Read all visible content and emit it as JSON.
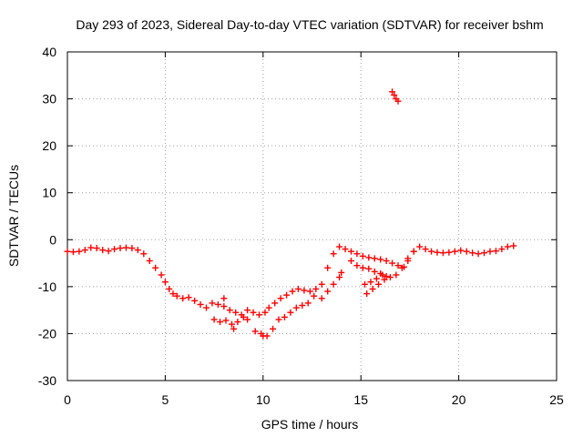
{
  "chart_data": {
    "type": "scatter",
    "title": "Day 293 of 2023, Sidereal Day-to-day VTEC variation (SDTVAR) for receiver bshm",
    "xlabel": "GPS time / hours",
    "ylabel": "SDTVAR / TECUs",
    "xlim": [
      0,
      25
    ],
    "ylim": [
      -30,
      40
    ],
    "xticks": [
      "0",
      "5",
      "10",
      "15",
      "20",
      "25"
    ],
    "yticks": [
      "-30",
      "-20",
      "-10",
      "0",
      "10",
      "20",
      "30",
      "40"
    ],
    "grid": true,
    "marker": "plus",
    "color": "#ff0000",
    "series": [
      {
        "name": "SDTVAR",
        "points": [
          [
            0.0,
            -2.5
          ],
          [
            0.3,
            -2.6
          ],
          [
            0.6,
            -2.5
          ],
          [
            0.9,
            -2.2
          ],
          [
            1.2,
            -1.7
          ],
          [
            1.5,
            -1.8
          ],
          [
            1.8,
            -2.2
          ],
          [
            2.1,
            -2.4
          ],
          [
            2.4,
            -2.0
          ],
          [
            2.7,
            -1.8
          ],
          [
            3.0,
            -1.7
          ],
          [
            3.3,
            -1.8
          ],
          [
            3.6,
            -2.2
          ],
          [
            3.9,
            -3.0
          ],
          [
            4.2,
            -4.5
          ],
          [
            4.5,
            -6.0
          ],
          [
            4.8,
            -7.5
          ],
          [
            5.0,
            -9.0
          ],
          [
            5.2,
            -10.5
          ],
          [
            5.4,
            -11.5
          ],
          [
            5.6,
            -12.0
          ],
          [
            5.9,
            -12.5
          ],
          [
            6.2,
            -12.3
          ],
          [
            6.5,
            -13.0
          ],
          [
            6.8,
            -13.8
          ],
          [
            7.1,
            -14.5
          ],
          [
            7.4,
            -13.5
          ],
          [
            7.7,
            -13.8
          ],
          [
            8.0,
            -14.2
          ],
          [
            8.3,
            -15.0
          ],
          [
            8.6,
            -15.5
          ],
          [
            8.9,
            -16.0
          ],
          [
            9.2,
            -15.0
          ],
          [
            9.5,
            -15.5
          ],
          [
            9.8,
            -16.0
          ],
          [
            10.1,
            -15.5
          ],
          [
            10.3,
            -14.5
          ],
          [
            10.6,
            -13.5
          ],
          [
            10.9,
            -12.5
          ],
          [
            11.2,
            -11.8
          ],
          [
            11.5,
            -11.0
          ],
          [
            11.8,
            -10.5
          ],
          [
            12.1,
            -10.8
          ],
          [
            12.4,
            -11.0
          ],
          [
            12.7,
            -10.5
          ],
          [
            13.0,
            -9.5
          ],
          [
            13.3,
            -6.0
          ],
          [
            13.6,
            -3.0
          ],
          [
            13.9,
            -1.5
          ],
          [
            14.2,
            -2.0
          ],
          [
            14.5,
            -2.5
          ],
          [
            14.8,
            -3.0
          ],
          [
            15.1,
            -3.5
          ],
          [
            15.4,
            -3.8
          ],
          [
            15.7,
            -4.0
          ],
          [
            16.0,
            -4.2
          ],
          [
            16.3,
            -4.5
          ],
          [
            16.6,
            -5.0
          ],
          [
            16.9,
            -5.5
          ],
          [
            17.2,
            -5.8
          ],
          [
            17.4,
            -4.0
          ],
          [
            17.7,
            -2.5
          ],
          [
            18.0,
            -1.5
          ],
          [
            18.3,
            -2.0
          ],
          [
            18.6,
            -2.5
          ],
          [
            18.9,
            -2.7
          ],
          [
            19.2,
            -2.8
          ],
          [
            19.5,
            -2.7
          ],
          [
            19.8,
            -2.5
          ],
          [
            20.1,
            -2.3
          ],
          [
            20.4,
            -2.5
          ],
          [
            20.7,
            -2.8
          ],
          [
            21.0,
            -3.0
          ],
          [
            21.3,
            -2.8
          ],
          [
            21.6,
            -2.5
          ],
          [
            21.9,
            -2.4
          ],
          [
            22.2,
            -2.0
          ],
          [
            22.5,
            -1.5
          ],
          [
            22.8,
            -1.3
          ],
          [
            7.5,
            -17.0
          ],
          [
            7.8,
            -17.5
          ],
          [
            8.1,
            -17.2
          ],
          [
            8.4,
            -18.0
          ],
          [
            8.7,
            -17.5
          ],
          [
            9.0,
            -16.5
          ],
          [
            9.6,
            -19.5
          ],
          [
            9.9,
            -20.0
          ],
          [
            10.2,
            -20.5
          ],
          [
            10.5,
            -19.0
          ],
          [
            10.8,
            -17.0
          ],
          [
            11.1,
            -16.5
          ],
          [
            11.4,
            -15.5
          ],
          [
            11.7,
            -14.5
          ],
          [
            12.0,
            -14.0
          ],
          [
            12.3,
            -13.5
          ],
          [
            12.6,
            -12.0
          ],
          [
            13.0,
            -12.5
          ],
          [
            13.3,
            -11.0
          ],
          [
            13.6,
            -9.5
          ],
          [
            13.9,
            -8.0
          ],
          [
            14.0,
            -7.0
          ],
          [
            15.3,
            -11.5
          ],
          [
            15.6,
            -10.5
          ],
          [
            15.9,
            -9.5
          ],
          [
            16.2,
            -8.5
          ],
          [
            16.5,
            -8.0
          ],
          [
            16.8,
            -7.5
          ],
          [
            17.1,
            -6.0
          ],
          [
            17.4,
            -4.5
          ],
          [
            17.7,
            -2.5
          ],
          [
            14.5,
            -4.5
          ],
          [
            14.8,
            -5.5
          ],
          [
            15.1,
            -6.0
          ],
          [
            15.4,
            -6.2
          ],
          [
            15.7,
            -6.8
          ],
          [
            16.0,
            -7.2
          ],
          [
            16.3,
            -7.8
          ],
          [
            15.2,
            -9.5
          ],
          [
            15.5,
            -9.0
          ],
          [
            15.8,
            -8.3
          ],
          [
            16.1,
            -7.5
          ],
          [
            16.6,
            31.5
          ],
          [
            16.7,
            30.8
          ],
          [
            16.8,
            30.0
          ],
          [
            16.9,
            29.5
          ],
          [
            8.0,
            -12.5
          ],
          [
            8.5,
            -19.0
          ],
          [
            9.2,
            -17.0
          ],
          [
            10.0,
            -20.5
          ]
        ]
      }
    ]
  }
}
